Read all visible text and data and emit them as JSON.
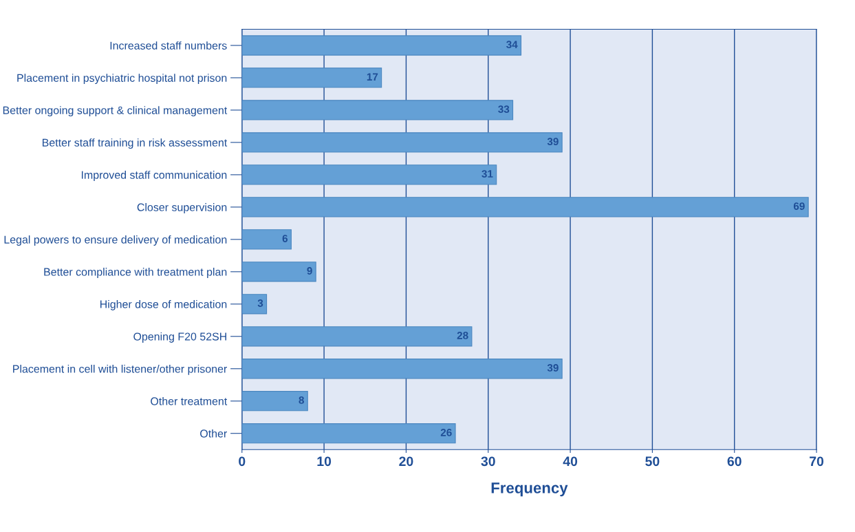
{
  "chart_data": {
    "type": "bar",
    "orientation": "horizontal",
    "xlabel": "Frequency",
    "categories": [
      "Increased staff numbers",
      "Placement in psychiatric hospital not prison",
      "Better ongoing support & clinical management",
      "Better staff training in risk assessment",
      "Improved staff communication",
      "Closer supervision",
      "Legal powers to ensure delivery of medication",
      "Better compliance with treatment plan",
      "Higher dose of medication",
      "Opening F20 52SH",
      "Placement in cell with listener/other prisoner",
      "Other treatment",
      "Other"
    ],
    "values": [
      34,
      17,
      33,
      39,
      31,
      69,
      6,
      9,
      3,
      28,
      39,
      8,
      26
    ],
    "color": "#64a0d6",
    "xlim": [
      0,
      70
    ],
    "xticks": [
      0,
      10,
      20,
      30,
      40,
      50,
      60,
      70
    ],
    "grid": "x",
    "data_labels": true
  }
}
